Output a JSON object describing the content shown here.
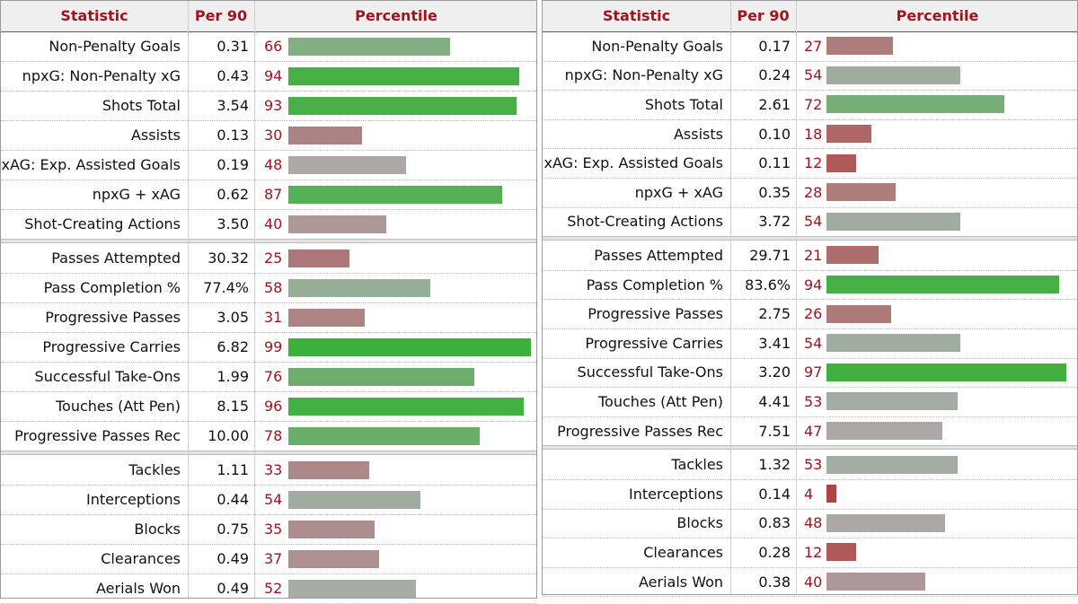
{
  "headers": {
    "statistic": "Statistic",
    "per90": "Per 90",
    "percentile": "Percentile"
  },
  "chart_data": [
    {
      "type": "table",
      "groups": [
        [
          {
            "stat": "Non-Penalty Goals",
            "per90": "0.31",
            "pct": 66
          },
          {
            "stat": "npxG: Non-Penalty xG",
            "per90": "0.43",
            "pct": 94
          },
          {
            "stat": "Shots Total",
            "per90": "3.54",
            "pct": 93
          },
          {
            "stat": "Assists",
            "per90": "0.13",
            "pct": 30
          },
          {
            "stat": "xAG: Exp. Assisted Goals",
            "per90": "0.19",
            "pct": 48
          },
          {
            "stat": "npxG + xAG",
            "per90": "0.62",
            "pct": 87
          },
          {
            "stat": "Shot-Creating Actions",
            "per90": "3.50",
            "pct": 40
          }
        ],
        [
          {
            "stat": "Passes Attempted",
            "per90": "30.32",
            "pct": 25
          },
          {
            "stat": "Pass Completion %",
            "per90": "77.4%",
            "pct": 58
          },
          {
            "stat": "Progressive Passes",
            "per90": "3.05",
            "pct": 31
          },
          {
            "stat": "Progressive Carries",
            "per90": "6.82",
            "pct": 99
          },
          {
            "stat": "Successful Take-Ons",
            "per90": "1.99",
            "pct": 76
          },
          {
            "stat": "Touches (Att Pen)",
            "per90": "8.15",
            "pct": 96
          },
          {
            "stat": "Progressive Passes Rec",
            "per90": "10.00",
            "pct": 78
          }
        ],
        [
          {
            "stat": "Tackles",
            "per90": "1.11",
            "pct": 33
          },
          {
            "stat": "Interceptions",
            "per90": "0.44",
            "pct": 54
          },
          {
            "stat": "Blocks",
            "per90": "0.75",
            "pct": 35
          },
          {
            "stat": "Clearances",
            "per90": "0.49",
            "pct": 37
          },
          {
            "stat": "Aerials Won",
            "per90": "0.49",
            "pct": 52
          }
        ]
      ]
    },
    {
      "type": "table",
      "groups": [
        [
          {
            "stat": "Non-Penalty Goals",
            "per90": "0.17",
            "pct": 27
          },
          {
            "stat": "npxG: Non-Penalty xG",
            "per90": "0.24",
            "pct": 54
          },
          {
            "stat": "Shots Total",
            "per90": "2.61",
            "pct": 72
          },
          {
            "stat": "Assists",
            "per90": "0.10",
            "pct": 18
          },
          {
            "stat": "xAG: Exp. Assisted Goals",
            "per90": "0.11",
            "pct": 12
          },
          {
            "stat": "npxG + xAG",
            "per90": "0.35",
            "pct": 28
          },
          {
            "stat": "Shot-Creating Actions",
            "per90": "3.72",
            "pct": 54
          }
        ],
        [
          {
            "stat": "Passes Attempted",
            "per90": "29.71",
            "pct": 21
          },
          {
            "stat": "Pass Completion %",
            "per90": "83.6%",
            "pct": 94
          },
          {
            "stat": "Progressive Passes",
            "per90": "2.75",
            "pct": 26
          },
          {
            "stat": "Progressive Carries",
            "per90": "3.41",
            "pct": 54
          },
          {
            "stat": "Successful Take-Ons",
            "per90": "3.20",
            "pct": 97
          },
          {
            "stat": "Touches (Att Pen)",
            "per90": "4.41",
            "pct": 53
          },
          {
            "stat": "Progressive Passes Rec",
            "per90": "7.51",
            "pct": 47
          }
        ],
        [
          {
            "stat": "Tackles",
            "per90": "1.32",
            "pct": 53
          },
          {
            "stat": "Interceptions",
            "per90": "0.14",
            "pct": 4
          },
          {
            "stat": "Blocks",
            "per90": "0.83",
            "pct": 48
          },
          {
            "stat": "Clearances",
            "per90": "0.28",
            "pct": 12
          },
          {
            "stat": "Aerials Won",
            "per90": "0.38",
            "pct": 40
          }
        ]
      ]
    }
  ]
}
